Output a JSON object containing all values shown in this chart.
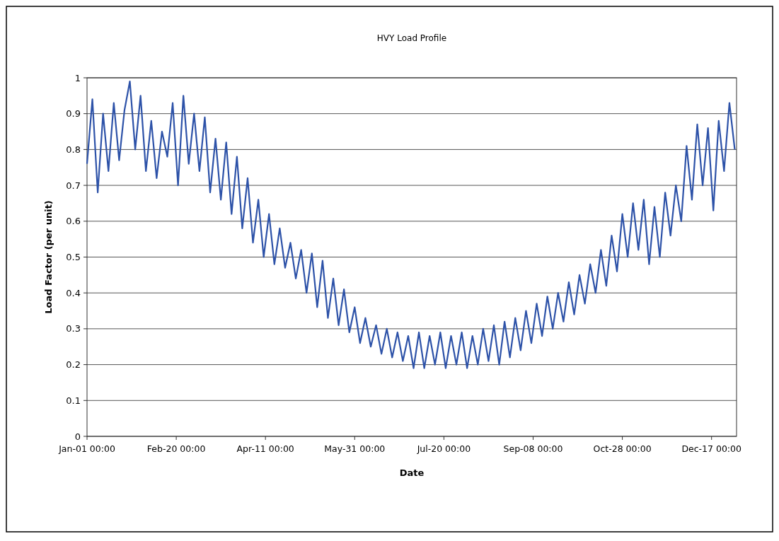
{
  "chart_data": {
    "type": "line",
    "title": "HVY Load Profile",
    "xlabel": "Date",
    "ylabel": "Load Factor (per unit)",
    "x": [
      "--01-01",
      "--01-04",
      "--01-07",
      "--01-10",
      "--01-13",
      "--01-16",
      "--01-19",
      "--01-22",
      "--01-25",
      "--01-28",
      "--01-31",
      "--02-03",
      "--02-06",
      "--02-09",
      "--02-12",
      "--02-15",
      "--02-18",
      "--02-21",
      "--02-24",
      "--02-27",
      "--03-02",
      "--03-05",
      "--03-08",
      "--03-11",
      "--03-14",
      "--03-17",
      "--03-20",
      "--03-23",
      "--03-26",
      "--03-29",
      "--04-01",
      "--04-04",
      "--04-07",
      "--04-10",
      "--04-13",
      "--04-16",
      "--04-19",
      "--04-22",
      "--04-25",
      "--04-28",
      "--05-01",
      "--05-04",
      "--05-07",
      "--05-10",
      "--05-13",
      "--05-16",
      "--05-19",
      "--05-22",
      "--05-25",
      "--05-28",
      "--05-31",
      "--06-03",
      "--06-06",
      "--06-09",
      "--06-12",
      "--06-15",
      "--06-18",
      "--06-21",
      "--06-24",
      "--06-27",
      "--06-30",
      "--07-03",
      "--07-06",
      "--07-09",
      "--07-12",
      "--07-15",
      "--07-18",
      "--07-21",
      "--07-24",
      "--07-27",
      "--07-30",
      "--08-02",
      "--08-05",
      "--08-08",
      "--08-11",
      "--08-14",
      "--08-17",
      "--08-20",
      "--08-23",
      "--08-26",
      "--08-29",
      "--09-01",
      "--09-04",
      "--09-07",
      "--09-10",
      "--09-13",
      "--09-16",
      "--09-19",
      "--09-22",
      "--09-25",
      "--09-28",
      "--10-01",
      "--10-04",
      "--10-07",
      "--10-10",
      "--10-13",
      "--10-16",
      "--10-19",
      "--10-22",
      "--10-25",
      "--10-28",
      "--10-31",
      "--11-03",
      "--11-06",
      "--11-09",
      "--11-12",
      "--11-15",
      "--11-18",
      "--11-21",
      "--11-24",
      "--11-27",
      "--11-30",
      "--12-03",
      "--12-06",
      "--12-09",
      "--12-12",
      "--12-15",
      "--12-18",
      "--12-21",
      "--12-24",
      "--12-27",
      "--12-30"
    ],
    "series": [
      {
        "color": "#2d52a8",
        "values": [
          0.76,
          0.94,
          0.68,
          0.9,
          0.74,
          0.93,
          0.77,
          0.91,
          0.99,
          0.8,
          0.95,
          0.74,
          0.88,
          0.72,
          0.85,
          0.78,
          0.93,
          0.7,
          0.95,
          0.76,
          0.9,
          0.74,
          0.89,
          0.68,
          0.83,
          0.66,
          0.82,
          0.62,
          0.78,
          0.58,
          0.72,
          0.54,
          0.66,
          0.5,
          0.62,
          0.48,
          0.58,
          0.47,
          0.54,
          0.44,
          0.52,
          0.4,
          0.51,
          0.36,
          0.49,
          0.33,
          0.44,
          0.31,
          0.41,
          0.29,
          0.36,
          0.26,
          0.33,
          0.25,
          0.31,
          0.23,
          0.3,
          0.22,
          0.29,
          0.21,
          0.28,
          0.19,
          0.29,
          0.19,
          0.28,
          0.2,
          0.29,
          0.19,
          0.28,
          0.2,
          0.29,
          0.19,
          0.28,
          0.2,
          0.3,
          0.21,
          0.31,
          0.2,
          0.32,
          0.22,
          0.33,
          0.24,
          0.35,
          0.26,
          0.37,
          0.28,
          0.39,
          0.3,
          0.4,
          0.32,
          0.43,
          0.34,
          0.45,
          0.37,
          0.48,
          0.4,
          0.52,
          0.42,
          0.56,
          0.46,
          0.62,
          0.5,
          0.65,
          0.52,
          0.66,
          0.48,
          0.64,
          0.5,
          0.68,
          0.56,
          0.7,
          0.6,
          0.81,
          0.66,
          0.87,
          0.7,
          0.86,
          0.63,
          0.88,
          0.74,
          0.93,
          0.8
        ]
      }
    ],
    "xlim": [
      "--01-01",
      "--12-31"
    ],
    "xticks": [
      {
        "value": "--01-01",
        "label": "Jan-01 00:00"
      },
      {
        "value": "--02-20",
        "label": "Feb-20 00:00"
      },
      {
        "value": "--04-11",
        "label": "Apr-11 00:00"
      },
      {
        "value": "--05-31",
        "label": "May-31 00:00"
      },
      {
        "value": "--07-20",
        "label": "Jul-20 00:00"
      },
      {
        "value": "--09-08",
        "label": "Sep-08 00:00"
      },
      {
        "value": "--10-28",
        "label": "Oct-28 00:00"
      },
      {
        "value": "--12-17",
        "label": "Dec-17 00:00"
      }
    ],
    "ylim": [
      0,
      1
    ],
    "yticks": [
      0,
      0.1,
      0.2,
      0.3,
      0.4,
      0.5,
      0.6,
      0.7,
      0.8,
      0.9,
      1
    ],
    "grid": "y",
    "marker": "none",
    "line_style": "solid"
  }
}
